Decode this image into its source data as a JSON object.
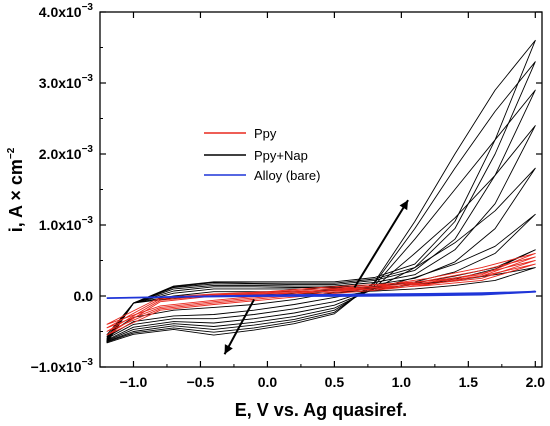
{
  "chart_data": {
    "type": "line",
    "xlabel": "E, V vs. Ag quasiref.",
    "ylabel": "i, A × cm",
    "ylabel_exponent": "−2",
    "xlim": [
      -1.25,
      2.05
    ],
    "ylim": [
      -0.001,
      0.004
    ],
    "x_ticks": [
      -1.0,
      -0.5,
      0.0,
      0.5,
      1.0,
      1.5,
      2.0
    ],
    "x_tick_labels": [
      "−1.0",
      "−0.5",
      "0.0",
      "0.5",
      "1.0",
      "1.5",
      "2.0"
    ],
    "y_ticks": [
      {
        "value": -0.001,
        "mantissa": "−1.0x10",
        "exponent": "−3"
      },
      {
        "value": 0.0,
        "mantissa": "0.0",
        "exponent": ""
      },
      {
        "value": 0.001,
        "mantissa": "1.0x10",
        "exponent": "−3"
      },
      {
        "value": 0.002,
        "mantissa": "2.0x10",
        "exponent": "−3"
      },
      {
        "value": 0.003,
        "mantissa": "3.0x10",
        "exponent": "−3"
      },
      {
        "value": 0.004,
        "mantissa": "4.0x10",
        "exponent": "−3"
      }
    ],
    "legend_position": "upper-left",
    "series": [
      {
        "name": "Ppy",
        "color": "#e8281e",
        "cycles": [
          {
            "x": [
              -1.2,
              -0.8,
              -0.4,
              0.0,
              0.4,
              0.8,
              1.2,
              1.6,
              2.0,
              1.6,
              1.2,
              0.8,
              0.4,
              0.0,
              -0.4,
              -0.8,
              -1.2
            ],
            "y": [
              -0.00055,
              -0.0002,
              -0.00012,
              -5e-05,
              2e-05,
              8e-05,
              0.00016,
              0.00028,
              0.00045,
              0.00022,
              0.00015,
              0.0001,
              6e-05,
              3e-05,
              0.0,
              -8e-05,
              -0.00055
            ]
          },
          {
            "x": [
              -1.2,
              -0.8,
              -0.4,
              0.0,
              0.4,
              0.8,
              1.2,
              1.6,
              2.0,
              1.6,
              1.2,
              0.8,
              0.4,
              0.0,
              -0.4,
              -0.8,
              -1.2
            ],
            "y": [
              -0.0005,
              -0.00018,
              -0.0001,
              -3e-05,
              4e-05,
              0.0001,
              0.00019,
              0.00032,
              0.0005,
              0.00025,
              0.00017,
              0.00012,
              8e-05,
              4e-05,
              1e-05,
              -6e-05,
              -0.0005
            ]
          },
          {
            "x": [
              -1.2,
              -0.8,
              -0.4,
              0.0,
              0.4,
              0.8,
              1.2,
              1.6,
              2.0,
              1.6,
              1.2,
              0.8,
              0.4,
              0.0,
              -0.4,
              -0.8,
              -1.2
            ],
            "y": [
              -0.00045,
              -0.00016,
              -8e-05,
              -1e-05,
              6e-05,
              0.00012,
              0.00022,
              0.00036,
              0.00055,
              0.00028,
              0.00019,
              0.00014,
              0.0001,
              5e-05,
              2e-05,
              -4e-05,
              -0.00045
            ]
          },
          {
            "x": [
              -1.2,
              -0.8,
              -0.4,
              0.0,
              0.4,
              0.8,
              1.2,
              1.6,
              2.0,
              1.6,
              1.2,
              0.8,
              0.4,
              0.0,
              -0.4,
              -0.8,
              -1.2
            ],
            "y": [
              -0.0004,
              -0.00014,
              -6e-05,
              1e-05,
              8e-05,
              0.00014,
              0.00025,
              0.0004,
              0.0006,
              0.0003,
              0.00021,
              0.00016,
              0.00012,
              6e-05,
              3e-05,
              -2e-05,
              -0.0004
            ]
          }
        ]
      },
      {
        "name": "Ppy+Nap",
        "color": "#000000",
        "cycles": [
          {
            "x": [
              -1.2,
              -1.0,
              -0.7,
              -0.4,
              -0.1,
              0.2,
              0.5,
              0.8,
              1.1,
              1.4,
              1.7,
              2.0,
              1.7,
              1.4,
              1.1,
              0.8,
              0.5,
              0.2,
              -0.1,
              -0.4,
              -0.7,
              -1.0,
              -1.2
            ],
            "y": [
              -0.00055,
              -0.0003,
              -0.0002,
              -0.00016,
              -0.00012,
              -5e-05,
              5e-05,
              0.0001,
              0.00016,
              0.00022,
              0.0003,
              0.0004,
              0.00022,
              0.00015,
              0.0001,
              7e-05,
              5e-05,
              3e-05,
              2e-05,
              0.0,
              -3e-05,
              -0.0001,
              -0.00055
            ]
          },
          {
            "x": [
              -1.2,
              -1.0,
              -0.7,
              -0.4,
              -0.1,
              0.2,
              0.5,
              0.8,
              1.1,
              1.4,
              1.7,
              2.0,
              1.7,
              1.4,
              1.1,
              0.8,
              0.5,
              0.2,
              -0.1,
              -0.4,
              -0.7,
              -1.0,
              -1.2
            ],
            "y": [
              -0.00058,
              -0.00036,
              -0.00028,
              -0.00026,
              -0.0002,
              -0.00012,
              -2e-05,
              8e-05,
              0.00018,
              0.00028,
              0.0004,
              0.00065,
              0.00038,
              0.00024,
              0.00016,
              0.00011,
              8e-05,
              6e-05,
              6e-05,
              6e-05,
              0.0,
              -0.0001,
              -0.00058
            ]
          },
          {
            "x": [
              -1.2,
              -1.0,
              -0.7,
              -0.4,
              -0.1,
              0.2,
              0.5,
              0.8,
              1.1,
              1.4,
              1.7,
              2.0,
              1.7,
              1.4,
              1.1,
              0.8,
              0.5,
              0.2,
              -0.1,
              -0.4,
              -0.7,
              -1.0,
              -1.2
            ],
            "y": [
              -0.0006,
              -0.0004,
              -0.00032,
              -0.00032,
              -0.00026,
              -0.00018,
              -8e-05,
              0.0001,
              0.00026,
              0.00045,
              0.0007,
              0.00115,
              0.0006,
              0.00034,
              0.0002,
              0.00013,
              0.0001,
              0.0001,
              0.0001,
              0.0001,
              4e-05,
              -0.0001,
              -0.0006
            ]
          },
          {
            "x": [
              -1.2,
              -1.0,
              -0.7,
              -0.4,
              -0.1,
              0.2,
              0.5,
              0.8,
              1.1,
              1.4,
              1.7,
              2.0,
              1.7,
              1.4,
              1.1,
              0.8,
              0.5,
              0.2,
              -0.1,
              -0.4,
              -0.7,
              -1.0,
              -1.2
            ],
            "y": [
              -0.00062,
              -0.00044,
              -0.00036,
              -0.00038,
              -0.00032,
              -0.00024,
              -0.00013,
              0.0001,
              0.0004,
              0.00075,
              0.0012,
              0.0018,
              0.00095,
              0.00048,
              0.00025,
              0.00016,
              0.00012,
              0.00012,
              0.00013,
              0.00013,
              7e-05,
              -0.0001,
              -0.00062
            ]
          },
          {
            "x": [
              -1.2,
              -1.0,
              -0.7,
              -0.4,
              -0.1,
              0.2,
              0.5,
              0.8,
              1.1,
              1.4,
              1.7,
              2.0,
              1.7,
              1.4,
              1.1,
              0.8,
              0.5,
              0.2,
              -0.1,
              -0.4,
              -0.7,
              -1.0,
              -1.2
            ],
            "y": [
              -0.00063,
              -0.00047,
              -0.00039,
              -0.00043,
              -0.00037,
              -0.00029,
              -0.00017,
              0.00012,
              0.0006,
              0.0011,
              0.0017,
              0.0024,
              0.0013,
              0.00065,
              0.0003,
              0.00019,
              0.00014,
              0.00014,
              0.00015,
              0.00015,
              0.0001,
              -0.0001,
              -0.00063
            ]
          },
          {
            "x": [
              -1.2,
              -1.0,
              -0.7,
              -0.4,
              -0.1,
              0.2,
              0.5,
              0.8,
              1.1,
              1.4,
              1.7,
              2.0,
              1.7,
              1.4,
              1.1,
              0.8,
              0.5,
              0.2,
              -0.1,
              -0.4,
              -0.7,
              -1.0,
              -1.2
            ],
            "y": [
              -0.00064,
              -0.0005,
              -0.00042,
              -0.00047,
              -0.00041,
              -0.00033,
              -0.0002,
              0.00015,
              0.0008,
              0.0015,
              0.0022,
              0.0029,
              0.0017,
              0.0008,
              0.00036,
              0.00022,
              0.00016,
              0.00016,
              0.00017,
              0.00017,
              0.00012,
              -0.0001,
              -0.00064
            ]
          },
          {
            "x": [
              -1.2,
              -1.0,
              -0.7,
              -0.4,
              -0.1,
              0.2,
              0.5,
              0.8,
              1.1,
              1.4,
              1.7,
              2.0,
              1.7,
              1.4,
              1.1,
              0.8,
              0.5,
              0.2,
              -0.1,
              -0.4,
              -0.7,
              -1.0,
              -1.2
            ],
            "y": [
              -0.00065,
              -0.00052,
              -0.00045,
              -0.00051,
              -0.00045,
              -0.00036,
              -0.00023,
              0.00018,
              0.00095,
              0.0018,
              0.0026,
              0.0033,
              0.002,
              0.00095,
              0.0004,
              0.00024,
              0.00018,
              0.00018,
              0.00018,
              0.00019,
              0.00013,
              -0.0001,
              -0.00065
            ]
          },
          {
            "x": [
              -1.2,
              -1.0,
              -0.7,
              -0.4,
              -0.1,
              0.2,
              0.5,
              0.8,
              1.1,
              1.4,
              1.7,
              2.0,
              1.7,
              1.4,
              1.1,
              0.8,
              0.5,
              0.2,
              -0.1,
              -0.4,
              -0.7,
              -1.0,
              -1.2
            ],
            "y": [
              -0.00066,
              -0.00054,
              -0.00047,
              -0.00055,
              -0.00048,
              -0.00039,
              -0.00025,
              0.0002,
              0.00105,
              0.002,
              0.0029,
              0.0036,
              0.0022,
              0.00105,
              0.00045,
              0.00026,
              0.0002,
              0.0002,
              0.0002,
              0.0002,
              0.00014,
              -0.0001,
              -0.00066
            ]
          }
        ]
      },
      {
        "name": "Alloy (bare)",
        "color": "#1f35d8",
        "cycles": [
          {
            "x": [
              -1.2,
              -0.6,
              0.0,
              0.6,
              1.2,
              1.6,
              2.0,
              1.6,
              1.2,
              0.6,
              0.0,
              -0.6,
              -1.2
            ],
            "y": [
              -3e-05,
              -1e-05,
              1e-05,
              2e-05,
              3e-05,
              4e-05,
              6e-05,
              2e-05,
              1e-05,
              0.0,
              0.0,
              -1e-05,
              -3e-05
            ]
          }
        ]
      }
    ],
    "arrows": [
      {
        "from": [
          0.65,
          0.00012
        ],
        "to": [
          1.05,
          0.00135
        ]
      },
      {
        "from": [
          -0.1,
          -5e-05
        ],
        "to": [
          -0.32,
          -0.00082
        ]
      }
    ]
  }
}
